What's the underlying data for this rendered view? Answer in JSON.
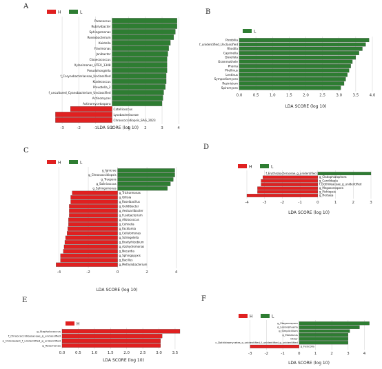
{
  "panel_letters": [
    "A",
    "B",
    "C",
    "D",
    "E",
    "F"
  ],
  "colors": {
    "H": "#e02020",
    "L": "#2e7d32"
  },
  "chart_data": [
    {
      "panel": "A",
      "type": "bar",
      "orientation": "horizontal",
      "xlabel": "LDA SCORE (log 10)",
      "xlim": [
        -3.5,
        4.2
      ],
      "ticks": [
        -3,
        -2,
        -1,
        0,
        1,
        2,
        3,
        4
      ],
      "legend": [
        "H",
        "L"
      ],
      "categories": [
        "Paracoccus",
        "Rubrivibacter",
        "Sphingomonas",
        "Roseobacterium",
        "Kaistella",
        "Flavimonas",
        "Janibacter",
        "Cloaecococcus",
        "Xylanimonas_UTEX_1348",
        "Pseudohongiella",
        "f_Corynebacteriaceae_Unclassified",
        "Kiadecoccus",
        "Prevotella_2",
        "f_uncultured_Cyanobacterium_Unclassified",
        "Actinomyces",
        "Actinomycetospora",
        "Catellicoccus",
        "Lysobacteriaceae",
        "Chroococcidiopsis_SAG_2023"
      ],
      "values": [
        3.9,
        3.9,
        3.8,
        3.7,
        3.5,
        3.4,
        3.35,
        3.3,
        3.3,
        3.3,
        3.25,
        3.25,
        3.2,
        3.1,
        3.05,
        3.0,
        -2.5,
        -3.4,
        -3.4
      ],
      "groups": [
        "L",
        "L",
        "L",
        "L",
        "L",
        "L",
        "L",
        "L",
        "L",
        "L",
        "L",
        "L",
        "L",
        "L",
        "L",
        "L",
        "H",
        "H",
        "H"
      ]
    },
    {
      "panel": "B",
      "type": "bar",
      "orientation": "horizontal",
      "xlabel": "LDA SCORE (log 10)",
      "xlim": [
        0,
        4
      ],
      "ticks": [
        "0.0",
        "0.5",
        "1.0",
        "1.5",
        "2.0",
        "2.5",
        "3.0",
        "3.5",
        "4.0"
      ],
      "legend": [
        "L"
      ],
      "categories": [
        "Porobilia",
        "f_unidentified_Unclassified",
        "Rhodila",
        "Caprinella",
        "Dorellola",
        "Grammothele",
        "Phoma",
        "Phellinus",
        "Lentinus",
        "Sympodiomyces",
        "Resinicium",
        "Spiromyces"
      ],
      "values": [
        3.9,
        3.8,
        3.7,
        3.6,
        3.5,
        3.4,
        3.35,
        3.3,
        3.25,
        3.2,
        3.15,
        3.05
      ],
      "groups": [
        "L",
        "L",
        "L",
        "L",
        "L",
        "L",
        "L",
        "L",
        "L",
        "L",
        "L",
        "L"
      ]
    },
    {
      "panel": "C",
      "type": "bar",
      "orientation": "horizontal",
      "xlabel": "LDA SCORE (log 10)",
      "xlim": [
        -4.4,
        4.3
      ],
      "ticks": [
        -4,
        -2,
        0,
        2,
        4
      ],
      "legend": [
        "H",
        "L"
      ],
      "categories": [
        "g_Ignicrae",
        "g_Chroococcidiopsis",
        "g_Truepera",
        "g_Salinicoccus",
        "g_Sphingomonas",
        "g_Trichormonas",
        "g_Gillisia",
        "g_Roseibacillus",
        "g_Gelidibacter",
        "g_Aestuariibacter",
        "g_Fusobacterium",
        "g_Alloiococcus",
        "g_Cohnella",
        "g_Facklamia",
        "g_Cellulomonas",
        "g_Schlegelella",
        "g_Bradyrhizobium",
        "g_Azohydromonas",
        "g_Nocardia",
        "g_Sphingopyxis",
        "g_Bacillus",
        "g_Methylobacterium"
      ],
      "values": [
        3.9,
        3.9,
        3.8,
        3.6,
        3.4,
        -3.1,
        -3.2,
        -3.2,
        -3.3,
        -3.3,
        -3.3,
        -3.35,
        -3.35,
        -3.4,
        -3.45,
        -3.55,
        -3.6,
        -3.65,
        -3.7,
        -3.9,
        -3.9,
        -4.2
      ],
      "groups": [
        "L",
        "L",
        "L",
        "L",
        "L",
        "H",
        "H",
        "H",
        "H",
        "H",
        "H",
        "H",
        "H",
        "H",
        "H",
        "H",
        "H",
        "H",
        "H",
        "H",
        "H",
        "H"
      ]
    },
    {
      "panel": "D",
      "type": "bar",
      "orientation": "horizontal",
      "xlabel": "LDA SCORE (log 10)",
      "xlim": [
        -4,
        3
      ],
      "ticks": [
        -4,
        -3,
        -2,
        -1,
        0,
        1,
        2,
        3
      ],
      "legend": [
        "H",
        "L"
      ],
      "categories": [
        "f_Erythrobacteraceae_g_unidentified",
        "g_Cladophialophora",
        "g_Candidapia",
        "f_Dothideaceae_g_unidentified",
        "g_Megasorospora",
        "g_Pichiopsis",
        "g_Hortaea"
      ],
      "values": [
        3.0,
        -3.1,
        -3.2,
        -3.2,
        -3.4,
        -3.4,
        -4.0
      ],
      "groups": [
        "L",
        "H",
        "H",
        "H",
        "H",
        "H",
        "H"
      ]
    },
    {
      "panel": "E",
      "type": "bar",
      "orientation": "horizontal",
      "xlabel": "LDA SCORE (log 10)",
      "xlim": [
        0,
        3.8
      ],
      "ticks": [
        "0.0",
        "0.5",
        "1.0",
        "1.5",
        "2.0",
        "2.5",
        "3.0",
        "3.5"
      ],
      "legend": [
        "H"
      ],
      "categories": [
        "g_Staphylococcus",
        "f_Chroococcidiopsaceae_g_unclassified",
        "o_Chloroplast_f_unidentified_g_unidentified",
        "g_Rosemonas"
      ],
      "values": [
        3.65,
        3.1,
        3.05,
        3.05
      ],
      "groups": [
        "H",
        "H",
        "H",
        "H"
      ]
    },
    {
      "panel": "F",
      "type": "bar",
      "orientation": "horizontal",
      "xlabel": "LDA SCORE (log 10)",
      "xlim": [
        -3.2,
        4.4
      ],
      "ticks": [
        -3,
        -2,
        -1,
        0,
        1,
        2,
        3,
        4
      ],
      "legend": [
        "H",
        "L"
      ],
      "categories": [
        "g_Stagonospora",
        "g_Lasiosphaeria",
        "g_Simplicillium",
        "g_Monascus",
        "Other",
        "c_Dothideomycetes_o_unidentified_f_unidentified_g_unidentified",
        "g_Fusicolla"
      ],
      "values": [
        4.3,
        3.7,
        3.1,
        3.0,
        3.0,
        3.0,
        -3.0
      ],
      "groups": [
        "L",
        "L",
        "L",
        "L",
        "L",
        "L",
        "H"
      ]
    }
  ]
}
